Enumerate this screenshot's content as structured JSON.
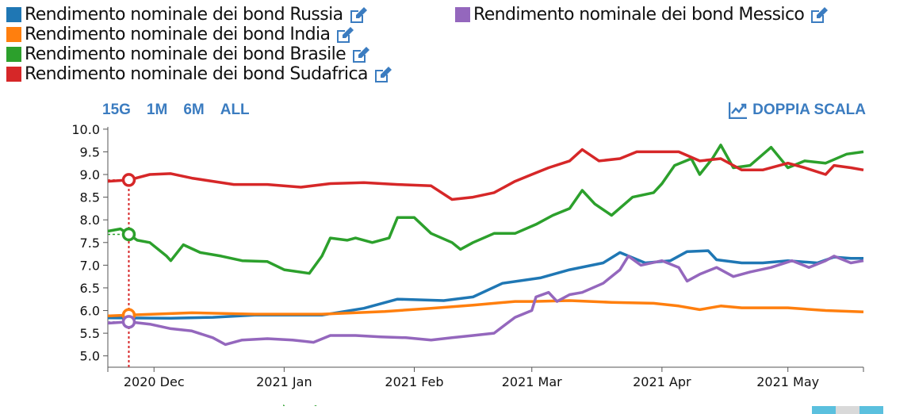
{
  "legend": {
    "items": [
      {
        "label": "Rendimento nominale dei bond Russia",
        "color": "#1f77b4"
      },
      {
        "label": "Rendimento nominale dei bond India",
        "color": "#ff7f0e"
      },
      {
        "label": "Rendimento nominale dei bond Brasile",
        "color": "#2ca02c"
      },
      {
        "label": "Rendimento nominale dei bond Sudafrica",
        "color": "#d62728"
      },
      {
        "label": "Rendimento nominale dei bond Messico",
        "color": "#9467bd"
      }
    ]
  },
  "controls": {
    "ranges": [
      "15G",
      "1M",
      "6M",
      "ALL"
    ],
    "dual_scale": "DOPPIA SCALA"
  },
  "chart_data": {
    "type": "line",
    "ylim": [
      4.75,
      10.05
    ],
    "y_ticks": [
      "10.0",
      "9.5",
      "9.0",
      "8.5",
      "8.0",
      "7.5",
      "7.0",
      "6.5",
      "6.0",
      "5.5",
      "5.0"
    ],
    "x_ticks": [
      "2020 Dec",
      "2021 Jan",
      "2021 Feb",
      "2021 Mar",
      "2021 Apr",
      "2021 May"
    ],
    "x_tick_dates": [
      "2020-12-01",
      "2021-01-01",
      "2021-02-01",
      "2021-03-01",
      "2021-04-01",
      "2021-05-01"
    ],
    "x_range": [
      "2020-11-20",
      "2021-05-19"
    ],
    "hover_date": "2020-11-25",
    "grid": false,
    "series": [
      {
        "name": "Rendimento nominale dei bond Russia",
        "color": "#1f77b4",
        "points": [
          [
            "2020-11-20",
            5.84
          ],
          [
            "2020-12-05",
            5.83
          ],
          [
            "2020-12-15",
            5.85
          ],
          [
            "2020-12-25",
            5.9
          ],
          [
            "2021-01-10",
            5.9
          ],
          [
            "2021-01-20",
            6.05
          ],
          [
            "2021-01-28",
            6.25
          ],
          [
            "2021-02-08",
            6.22
          ],
          [
            "2021-02-15",
            6.3
          ],
          [
            "2021-02-22",
            6.6
          ],
          [
            "2021-03-03",
            6.72
          ],
          [
            "2021-03-10",
            6.9
          ],
          [
            "2021-03-18",
            7.05
          ],
          [
            "2021-03-22",
            7.28
          ],
          [
            "2021-03-28",
            7.05
          ],
          [
            "2021-04-03",
            7.1
          ],
          [
            "2021-04-07",
            7.3
          ],
          [
            "2021-04-12",
            7.32
          ],
          [
            "2021-04-14",
            7.12
          ],
          [
            "2021-04-20",
            7.05
          ],
          [
            "2021-04-25",
            7.05
          ],
          [
            "2021-05-01",
            7.1
          ],
          [
            "2021-05-08",
            7.05
          ],
          [
            "2021-05-12",
            7.18
          ],
          [
            "2021-05-16",
            7.15
          ],
          [
            "2021-05-19",
            7.15
          ]
        ]
      },
      {
        "name": "Rendimento nominale dei bond India",
        "color": "#ff7f0e",
        "points": [
          [
            "2020-11-20",
            5.88
          ],
          [
            "2020-11-25",
            5.9
          ],
          [
            "2020-12-10",
            5.95
          ],
          [
            "2020-12-25",
            5.92
          ],
          [
            "2021-01-10",
            5.92
          ],
          [
            "2021-01-25",
            5.98
          ],
          [
            "2021-02-05",
            6.05
          ],
          [
            "2021-02-15",
            6.12
          ],
          [
            "2021-02-25",
            6.2
          ],
          [
            "2021-03-01",
            6.2
          ],
          [
            "2021-03-10",
            6.22
          ],
          [
            "2021-03-20",
            6.18
          ],
          [
            "2021-03-30",
            6.16
          ],
          [
            "2021-04-05",
            6.1
          ],
          [
            "2021-04-10",
            6.02
          ],
          [
            "2021-04-15",
            6.1
          ],
          [
            "2021-04-20",
            6.06
          ],
          [
            "2021-05-01",
            6.06
          ],
          [
            "2021-05-10",
            6.0
          ],
          [
            "2021-05-19",
            5.97
          ]
        ]
      },
      {
        "name": "Rendimento nominale dei bond Brasile",
        "color": "#2ca02c",
        "points": [
          [
            "2020-11-20",
            7.75
          ],
          [
            "2020-11-23",
            7.8
          ],
          [
            "2020-11-25",
            7.68
          ],
          [
            "2020-11-27",
            7.55
          ],
          [
            "2020-11-30",
            7.5
          ],
          [
            "2020-12-04",
            7.2
          ],
          [
            "2020-12-05",
            7.1
          ],
          [
            "2020-12-08",
            7.45
          ],
          [
            "2020-12-12",
            7.28
          ],
          [
            "2020-12-17",
            7.2
          ],
          [
            "2020-12-22",
            7.1
          ],
          [
            "2020-12-28",
            7.08
          ],
          [
            "2021-01-01",
            6.9
          ],
          [
            "2021-01-07",
            6.82
          ],
          [
            "2021-01-10",
            7.2
          ],
          [
            "2021-01-12",
            7.6
          ],
          [
            "2021-01-16",
            7.55
          ],
          [
            "2021-01-18",
            7.6
          ],
          [
            "2021-01-22",
            7.5
          ],
          [
            "2021-01-26",
            7.6
          ],
          [
            "2021-01-28",
            8.05
          ],
          [
            "2021-02-01",
            8.05
          ],
          [
            "2021-02-05",
            7.7
          ],
          [
            "2021-02-10",
            7.5
          ],
          [
            "2021-02-12",
            7.35
          ],
          [
            "2021-02-15",
            7.5
          ],
          [
            "2021-02-20",
            7.7
          ],
          [
            "2021-02-25",
            7.7
          ],
          [
            "2021-03-02",
            7.9
          ],
          [
            "2021-03-06",
            8.1
          ],
          [
            "2021-03-10",
            8.25
          ],
          [
            "2021-03-13",
            8.65
          ],
          [
            "2021-03-16",
            8.35
          ],
          [
            "2021-03-20",
            8.1
          ],
          [
            "2021-03-25",
            8.5
          ],
          [
            "2021-03-30",
            8.6
          ],
          [
            "2021-04-01",
            8.8
          ],
          [
            "2021-04-04",
            9.2
          ],
          [
            "2021-04-08",
            9.35
          ],
          [
            "2021-04-10",
            9.0
          ],
          [
            "2021-04-13",
            9.35
          ],
          [
            "2021-04-15",
            9.65
          ],
          [
            "2021-04-18",
            9.15
          ],
          [
            "2021-04-22",
            9.2
          ],
          [
            "2021-04-27",
            9.6
          ],
          [
            "2021-05-01",
            9.15
          ],
          [
            "2021-05-05",
            9.3
          ],
          [
            "2021-05-10",
            9.25
          ],
          [
            "2021-05-15",
            9.45
          ],
          [
            "2021-05-19",
            9.5
          ]
        ]
      },
      {
        "name": "Rendimento nominale dei bond Sudafrica",
        "color": "#d62728",
        "points": [
          [
            "2020-11-20",
            8.85
          ],
          [
            "2020-11-25",
            8.88
          ],
          [
            "2020-11-30",
            9.0
          ],
          [
            "2020-12-05",
            9.02
          ],
          [
            "2020-12-10",
            8.92
          ],
          [
            "2020-12-15",
            8.85
          ],
          [
            "2020-12-20",
            8.78
          ],
          [
            "2020-12-28",
            8.78
          ],
          [
            "2021-01-05",
            8.72
          ],
          [
            "2021-01-12",
            8.8
          ],
          [
            "2021-01-20",
            8.82
          ],
          [
            "2021-01-28",
            8.78
          ],
          [
            "2021-02-05",
            8.75
          ],
          [
            "2021-02-10",
            8.45
          ],
          [
            "2021-02-15",
            8.5
          ],
          [
            "2021-02-20",
            8.6
          ],
          [
            "2021-02-25",
            8.85
          ],
          [
            "2021-03-01",
            9.0
          ],
          [
            "2021-03-05",
            9.15
          ],
          [
            "2021-03-10",
            9.3
          ],
          [
            "2021-03-13",
            9.55
          ],
          [
            "2021-03-17",
            9.3
          ],
          [
            "2021-03-22",
            9.35
          ],
          [
            "2021-03-26",
            9.5
          ],
          [
            "2021-03-31",
            9.5
          ],
          [
            "2021-04-05",
            9.5
          ],
          [
            "2021-04-10",
            9.3
          ],
          [
            "2021-04-15",
            9.35
          ],
          [
            "2021-04-20",
            9.1
          ],
          [
            "2021-04-25",
            9.1
          ],
          [
            "2021-05-01",
            9.25
          ],
          [
            "2021-05-05",
            9.15
          ],
          [
            "2021-05-10",
            9.0
          ],
          [
            "2021-05-12",
            9.2
          ],
          [
            "2021-05-16",
            9.15
          ],
          [
            "2021-05-19",
            9.1
          ]
        ]
      },
      {
        "name": "Rendimento nominale dei bond Messico",
        "color": "#9467bd",
        "points": [
          [
            "2020-11-20",
            5.72
          ],
          [
            "2020-11-25",
            5.75
          ],
          [
            "2020-11-30",
            5.7
          ],
          [
            "2020-12-05",
            5.6
          ],
          [
            "2020-12-10",
            5.55
          ],
          [
            "2020-12-15",
            5.4
          ],
          [
            "2020-12-18",
            5.25
          ],
          [
            "2020-12-22",
            5.35
          ],
          [
            "2020-12-28",
            5.38
          ],
          [
            "2021-01-03",
            5.35
          ],
          [
            "2021-01-08",
            5.3
          ],
          [
            "2021-01-12",
            5.45
          ],
          [
            "2021-01-18",
            5.45
          ],
          [
            "2021-01-24",
            5.42
          ],
          [
            "2021-01-30",
            5.4
          ],
          [
            "2021-02-05",
            5.35
          ],
          [
            "2021-02-10",
            5.4
          ],
          [
            "2021-02-15",
            5.45
          ],
          [
            "2021-02-20",
            5.5
          ],
          [
            "2021-02-25",
            5.85
          ],
          [
            "2021-03-01",
            6.0
          ],
          [
            "2021-03-02",
            6.3
          ],
          [
            "2021-03-05",
            6.4
          ],
          [
            "2021-03-07",
            6.2
          ],
          [
            "2021-03-10",
            6.35
          ],
          [
            "2021-03-13",
            6.4
          ],
          [
            "2021-03-18",
            6.6
          ],
          [
            "2021-03-22",
            6.9
          ],
          [
            "2021-03-24",
            7.2
          ],
          [
            "2021-03-27",
            7.0
          ],
          [
            "2021-04-01",
            7.1
          ],
          [
            "2021-04-05",
            6.95
          ],
          [
            "2021-04-07",
            6.65
          ],
          [
            "2021-04-10",
            6.8
          ],
          [
            "2021-04-14",
            6.95
          ],
          [
            "2021-04-18",
            6.75
          ],
          [
            "2021-04-22",
            6.85
          ],
          [
            "2021-04-27",
            6.95
          ],
          [
            "2021-05-02",
            7.1
          ],
          [
            "2021-05-06",
            6.95
          ],
          [
            "2021-05-10",
            7.1
          ],
          [
            "2021-05-12",
            7.2
          ],
          [
            "2021-05-16",
            7.05
          ],
          [
            "2021-05-19",
            7.1
          ]
        ]
      }
    ]
  }
}
